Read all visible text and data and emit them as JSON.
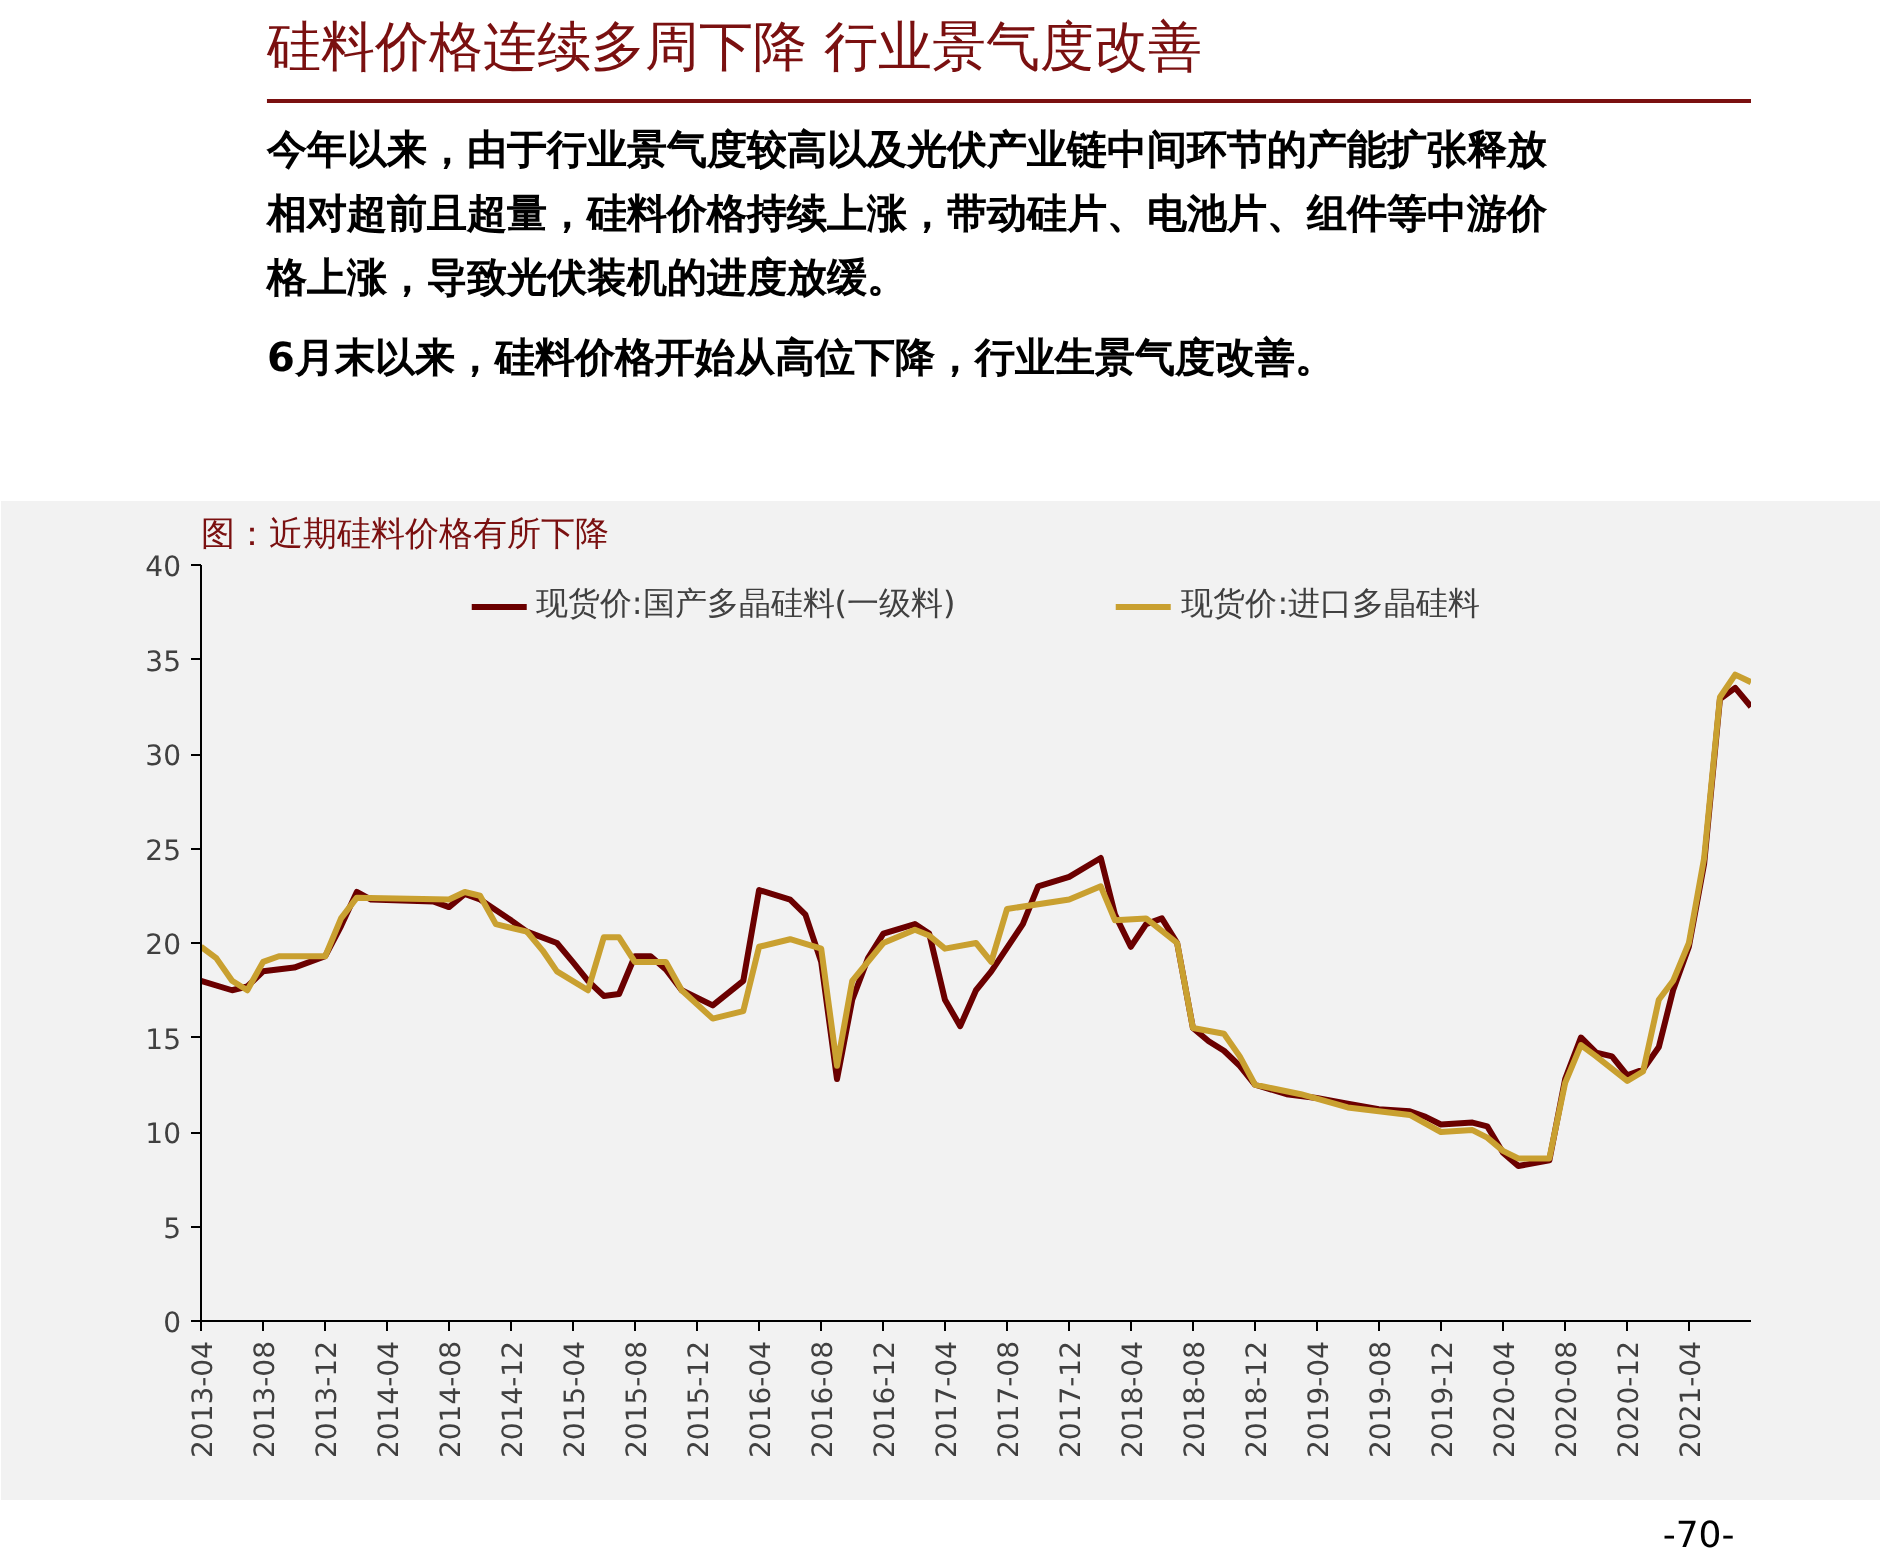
{
  "chart_data": {
    "type": "line",
    "title": "硅料价格连续多周下降 行业景气度改善",
    "subtitle": "图：近期硅料价格有所下降",
    "annotations": [
      "今年以来，由于行业景气度较高以及光伏产业链中间环节的产能扩张释放相对超前且超量，硅料价格持续上涨，带动硅片、电池片、组件等中游价格上涨，导致光伏装机的进度放缓。",
      "6月末以来，硅料价格开始从高位下降，行业生景气度改善。",
      "-70-"
    ],
    "xlim": [
      "2013-04",
      "2021-08"
    ],
    "xticks": [
      "2013-04",
      "2013-08",
      "2013-12",
      "2014-04",
      "2014-08",
      "2014-12",
      "2015-04",
      "2015-08",
      "2015-12",
      "2016-04",
      "2016-08",
      "2016-12",
      "2017-04",
      "2017-08",
      "2017-12",
      "2018-04",
      "2018-08",
      "2018-12",
      "2019-04",
      "2019-08",
      "2019-12",
      "2020-04",
      "2020-08",
      "2020-12",
      "2021-04"
    ],
    "ylim": [
      0,
      40
    ],
    "yticks": [
      0,
      5,
      10,
      15,
      20,
      25,
      30,
      35,
      40
    ],
    "grid": false,
    "legend": "top",
    "series": [
      {
        "name": "现货价:国产多晶硅料(一级料)",
        "color": "#6b0000",
        "x": [
          "2013-04",
          "2013-06",
          "2013-07",
          "2013-08",
          "2013-10",
          "2013-12",
          "2014-01",
          "2014-02",
          "2014-03",
          "2014-07",
          "2014-08",
          "2014-09",
          "2014-10",
          "2014-12",
          "2015-01",
          "2015-03",
          "2015-04",
          "2015-05",
          "2015-06",
          "2015-07",
          "2015-08",
          "2015-09",
          "2015-10",
          "2015-11",
          "2016-01",
          "2016-03",
          "2016-04",
          "2016-06",
          "2016-07",
          "2016-08",
          "2016-09",
          "2016-10",
          "2016-11",
          "2016-12",
          "2017-02",
          "2017-03",
          "2017-04",
          "2017-05",
          "2017-06",
          "2017-07",
          "2017-09",
          "2017-10",
          "2017-12",
          "2018-02",
          "2018-03",
          "2018-04",
          "2018-05",
          "2018-06",
          "2018-07",
          "2018-08",
          "2018-09",
          "2018-10",
          "2018-11",
          "2018-12",
          "2019-02",
          "2019-04",
          "2019-06",
          "2019-08",
          "2019-10",
          "2019-11",
          "2019-12",
          "2020-02",
          "2020-03",
          "2020-04",
          "2020-05",
          "2020-07",
          "2020-08",
          "2020-09",
          "2020-10",
          "2020-11",
          "2020-12",
          "2021-01",
          "2021-02",
          "2021-03",
          "2021-04",
          "2021-05",
          "2021-06",
          "2021-07",
          "2021-08"
        ],
        "values": [
          18.0,
          17.5,
          17.7,
          18.5,
          18.7,
          19.3,
          20.9,
          22.7,
          22.3,
          22.2,
          21.9,
          22.6,
          22.3,
          21.2,
          20.6,
          20.0,
          19.0,
          18.0,
          17.2,
          17.3,
          19.3,
          19.3,
          18.6,
          17.5,
          16.7,
          18.0,
          22.8,
          22.3,
          21.5,
          19.0,
          12.8,
          17.0,
          19.2,
          20.5,
          21.0,
          20.5,
          17.0,
          15.6,
          17.5,
          18.5,
          21.0,
          23.0,
          23.5,
          24.5,
          21.5,
          19.8,
          21.0,
          21.3,
          20.0,
          15.5,
          14.8,
          14.3,
          13.5,
          12.5,
          12.0,
          11.8,
          11.5,
          11.2,
          11.1,
          10.8,
          10.4,
          10.5,
          10.3,
          8.9,
          8.2,
          8.5,
          12.8,
          15.0,
          14.2,
          14.0,
          13.0,
          13.3,
          14.5,
          17.5,
          19.8,
          24.2,
          32.9,
          33.5,
          32.5
        ]
      },
      {
        "name": "现货价:进口多晶硅料",
        "color": "#c9a030",
        "x": [
          "2013-04",
          "2013-05",
          "2013-06",
          "2013-07",
          "2013-08",
          "2013-09",
          "2013-12",
          "2014-01",
          "2014-02",
          "2014-08",
          "2014-09",
          "2014-10",
          "2014-11",
          "2015-01",
          "2015-02",
          "2015-03",
          "2015-05",
          "2015-06",
          "2015-07",
          "2015-08",
          "2015-10",
          "2015-11",
          "2016-01",
          "2016-03",
          "2016-04",
          "2016-06",
          "2016-08",
          "2016-09",
          "2016-10",
          "2016-12",
          "2017-02",
          "2017-03",
          "2017-04",
          "2017-06",
          "2017-07",
          "2017-08",
          "2017-12",
          "2018-02",
          "2018-03",
          "2018-05",
          "2018-07",
          "2018-08",
          "2018-10",
          "2018-11",
          "2018-12",
          "2019-03",
          "2019-06",
          "2019-10",
          "2019-12",
          "2020-02",
          "2020-03",
          "2020-04",
          "2020-05",
          "2020-07",
          "2020-08",
          "2020-09",
          "2020-10",
          "2020-12",
          "2021-01",
          "2021-02",
          "2021-03",
          "2021-04",
          "2021-05",
          "2021-06",
          "2021-07",
          "2021-08"
        ],
        "values": [
          19.8,
          19.2,
          18.0,
          17.5,
          19.0,
          19.3,
          19.3,
          21.3,
          22.4,
          22.3,
          22.7,
          22.5,
          21.0,
          20.6,
          19.6,
          18.5,
          17.5,
          20.3,
          20.3,
          19.0,
          19.0,
          17.5,
          16.0,
          16.4,
          19.8,
          20.2,
          19.7,
          13.5,
          18.0,
          20.0,
          20.7,
          20.4,
          19.7,
          20.0,
          19.0,
          21.8,
          22.3,
          23.0,
          21.2,
          21.3,
          20.0,
          15.5,
          15.2,
          14.0,
          12.5,
          12.0,
          11.3,
          10.9,
          10.0,
          10.1,
          9.7,
          9.0,
          8.6,
          8.6,
          12.6,
          14.6,
          14.0,
          12.7,
          13.2,
          17.0,
          18.0,
          20.0,
          24.5,
          33.0,
          34.2,
          33.8
        ]
      }
    ]
  }
}
